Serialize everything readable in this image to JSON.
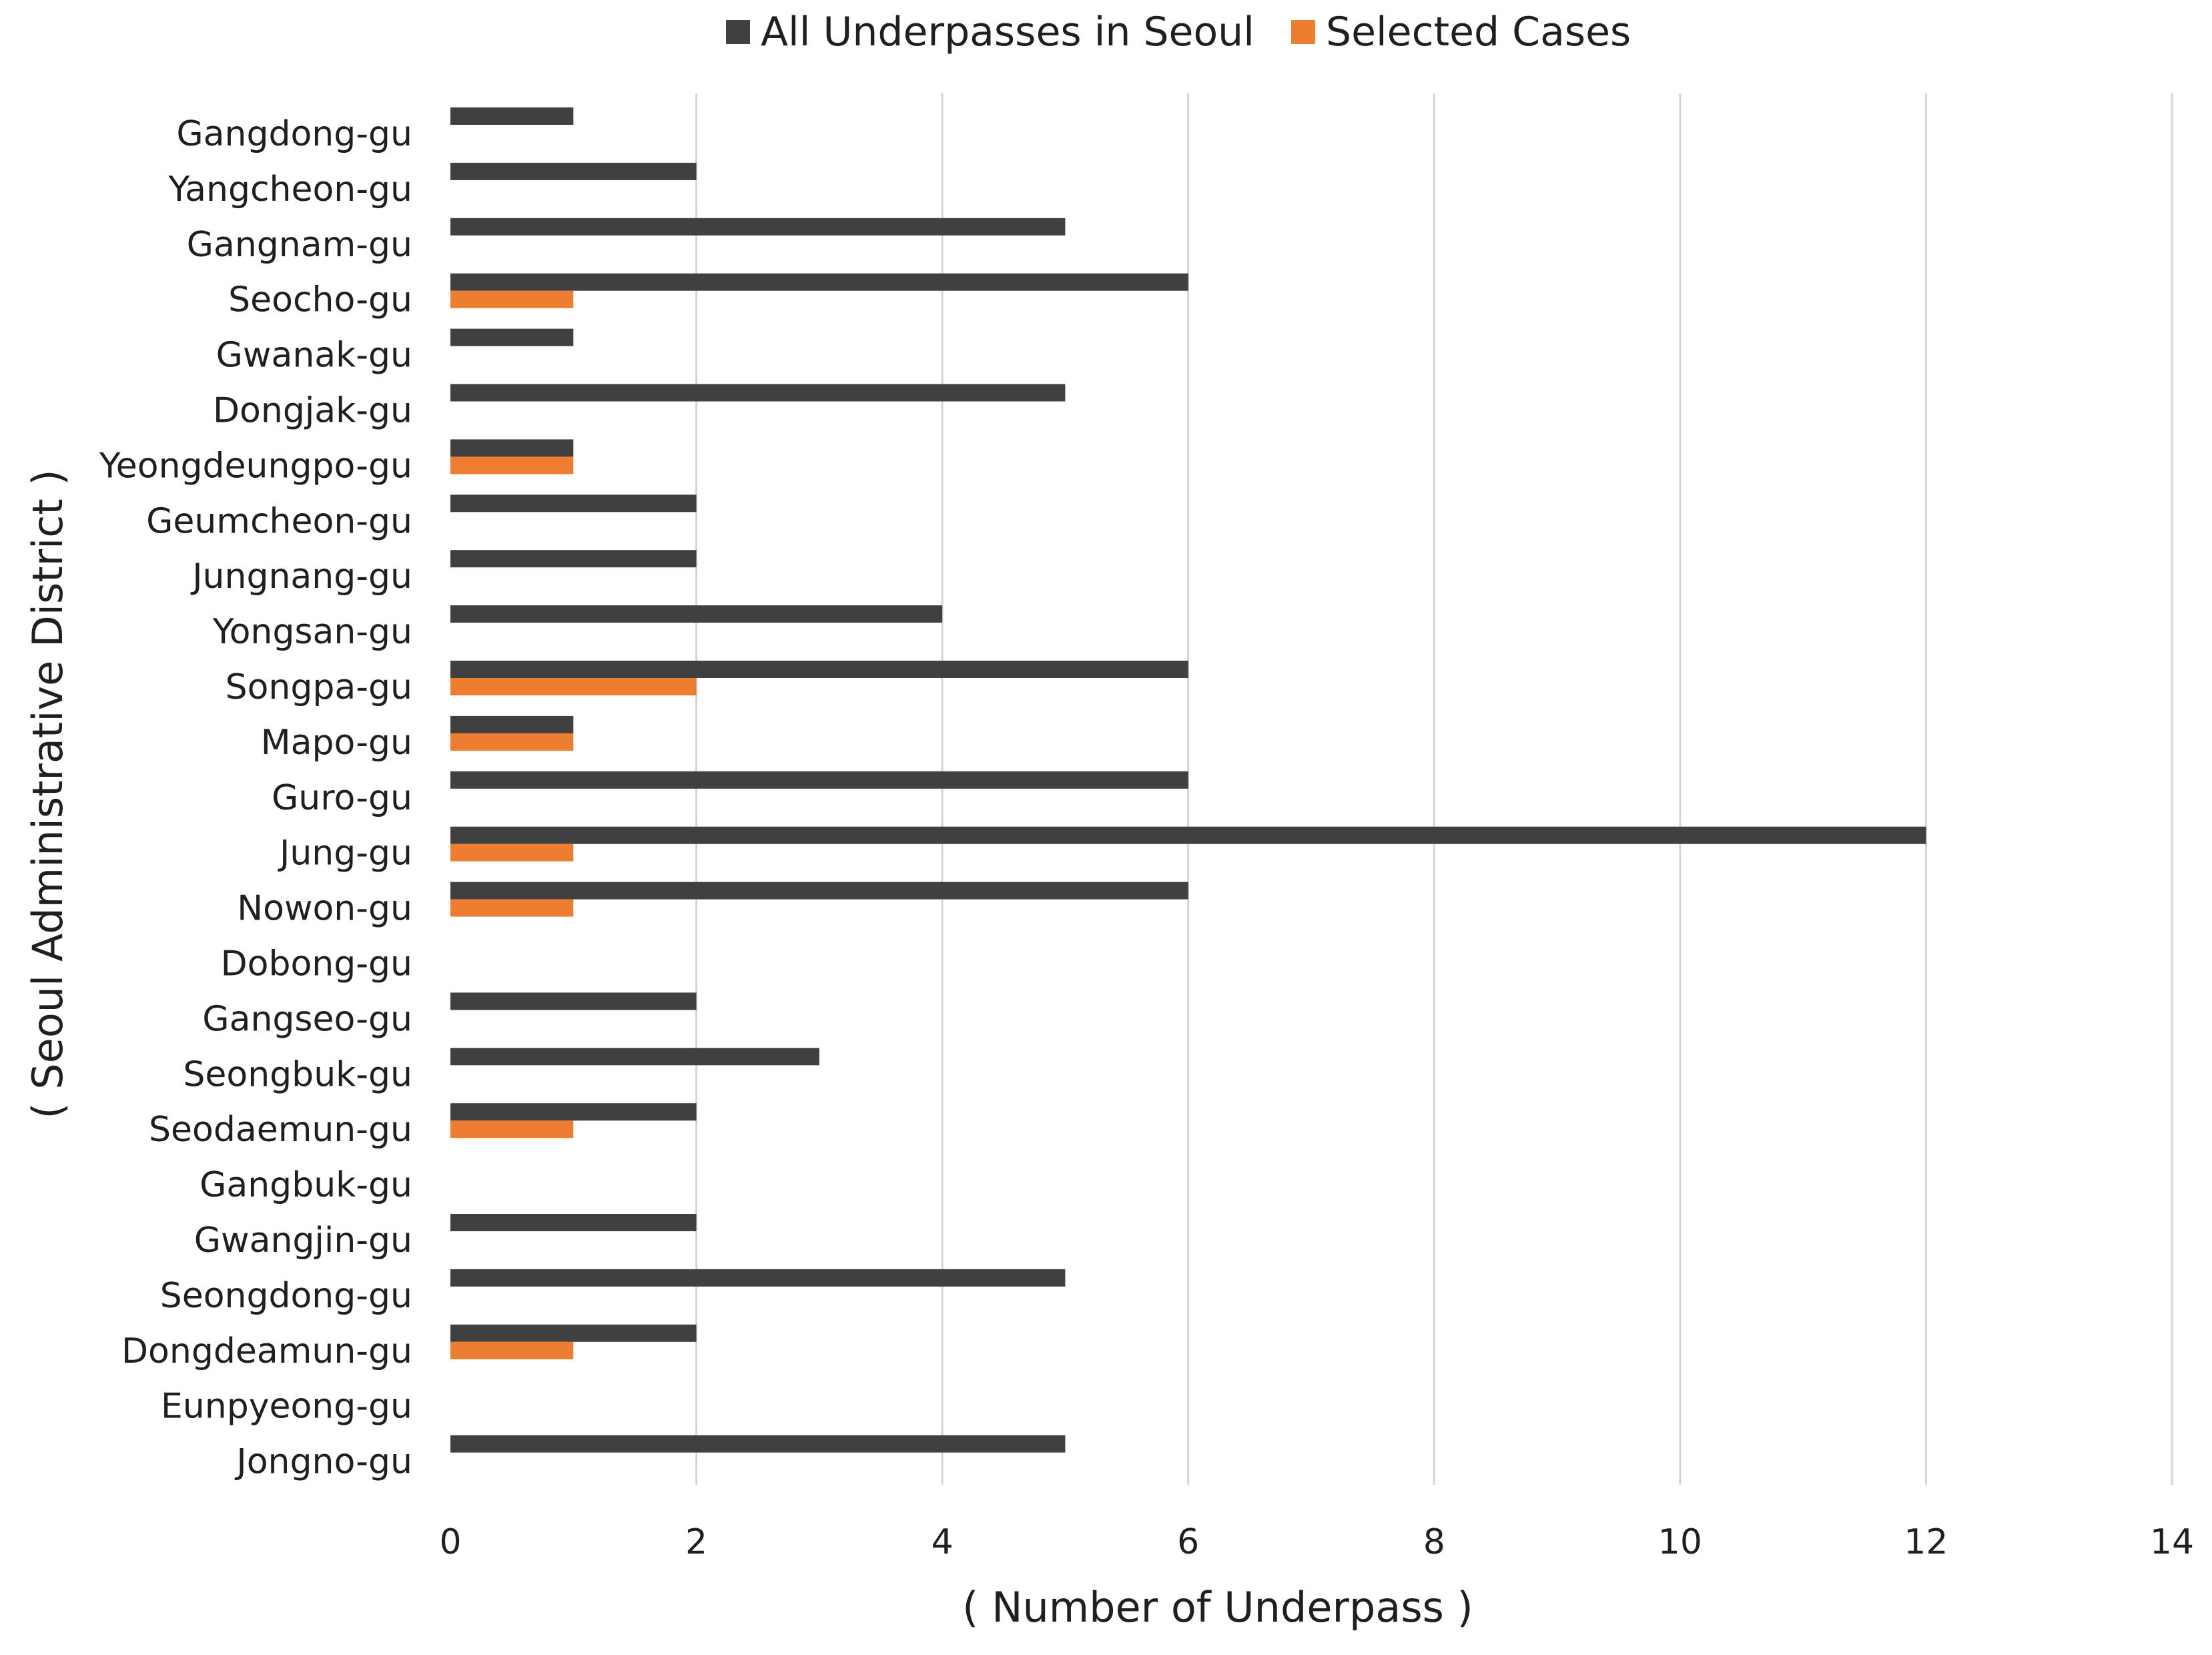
{
  "chart_data": {
    "type": "bar",
    "orientation": "horizontal",
    "title": "",
    "xlabel": "( Number of Underpass )",
    "ylabel": "( Seoul Administrative District )",
    "xlim": [
      0,
      14
    ],
    "xticks": [
      0,
      2,
      4,
      6,
      8,
      10,
      12,
      14
    ],
    "grid": "vertical",
    "legend_position": "top-center",
    "categories": [
      "Gangdong-gu",
      "Yangcheon-gu",
      "Gangnam-gu",
      "Seocho-gu",
      "Gwanak-gu",
      "Dongjak-gu",
      "Yeongdeungpo-gu",
      "Geumcheon-gu",
      "Jungnang-gu",
      "Yongsan-gu",
      "Songpa-gu",
      "Mapo-gu",
      "Guro-gu",
      "Jung-gu",
      "Nowon-gu",
      "Dobong-gu",
      "Gangseo-gu",
      "Seongbuk-gu",
      "Seodaemun-gu",
      "Gangbuk-gu",
      "Gwangjin-gu",
      "Seongdong-gu",
      "Dongdeamun-gu",
      "Eunpyeong-gu",
      "Jongno-gu"
    ],
    "series": [
      {
        "name": "All Underpasses in Seoul",
        "color": "#404040",
        "values": [
          1,
          2,
          5,
          6,
          1,
          5,
          1,
          2,
          2,
          4,
          6,
          1,
          6,
          12,
          6,
          0,
          2,
          3,
          2,
          0,
          2,
          5,
          2,
          0,
          5
        ]
      },
      {
        "name": "Selected Cases",
        "color": "#ED7D31",
        "values": [
          0,
          0,
          0,
          1,
          0,
          0,
          1,
          0,
          0,
          0,
          2,
          1,
          0,
          1,
          1,
          0,
          0,
          0,
          1,
          0,
          0,
          0,
          1,
          0,
          0
        ]
      }
    ]
  }
}
